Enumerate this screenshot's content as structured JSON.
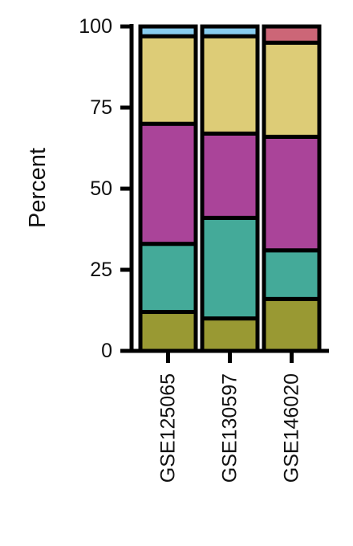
{
  "chart_data": {
    "type": "bar",
    "stacked": true,
    "ylabel": "Percent",
    "ylim": [
      0,
      100
    ],
    "yticks": [
      0,
      25,
      50,
      75,
      100
    ],
    "categories": [
      "GSE125065",
      "GSE130597",
      "GSE146020"
    ],
    "series": [
      {
        "color": "#999933",
        "values": [
          12,
          10,
          16
        ]
      },
      {
        "color": "#44AA99",
        "values": [
          21,
          31,
          15
        ]
      },
      {
        "color": "#AA4499",
        "values": [
          37,
          26,
          35
        ]
      },
      {
        "color": "#DDCC77",
        "values": [
          27,
          30,
          29
        ]
      },
      {
        "color": "#88CCEE",
        "values": [
          3,
          3,
          0
        ]
      },
      {
        "color": "#CC6677",
        "values": [
          0,
          0,
          5
        ]
      }
    ]
  }
}
